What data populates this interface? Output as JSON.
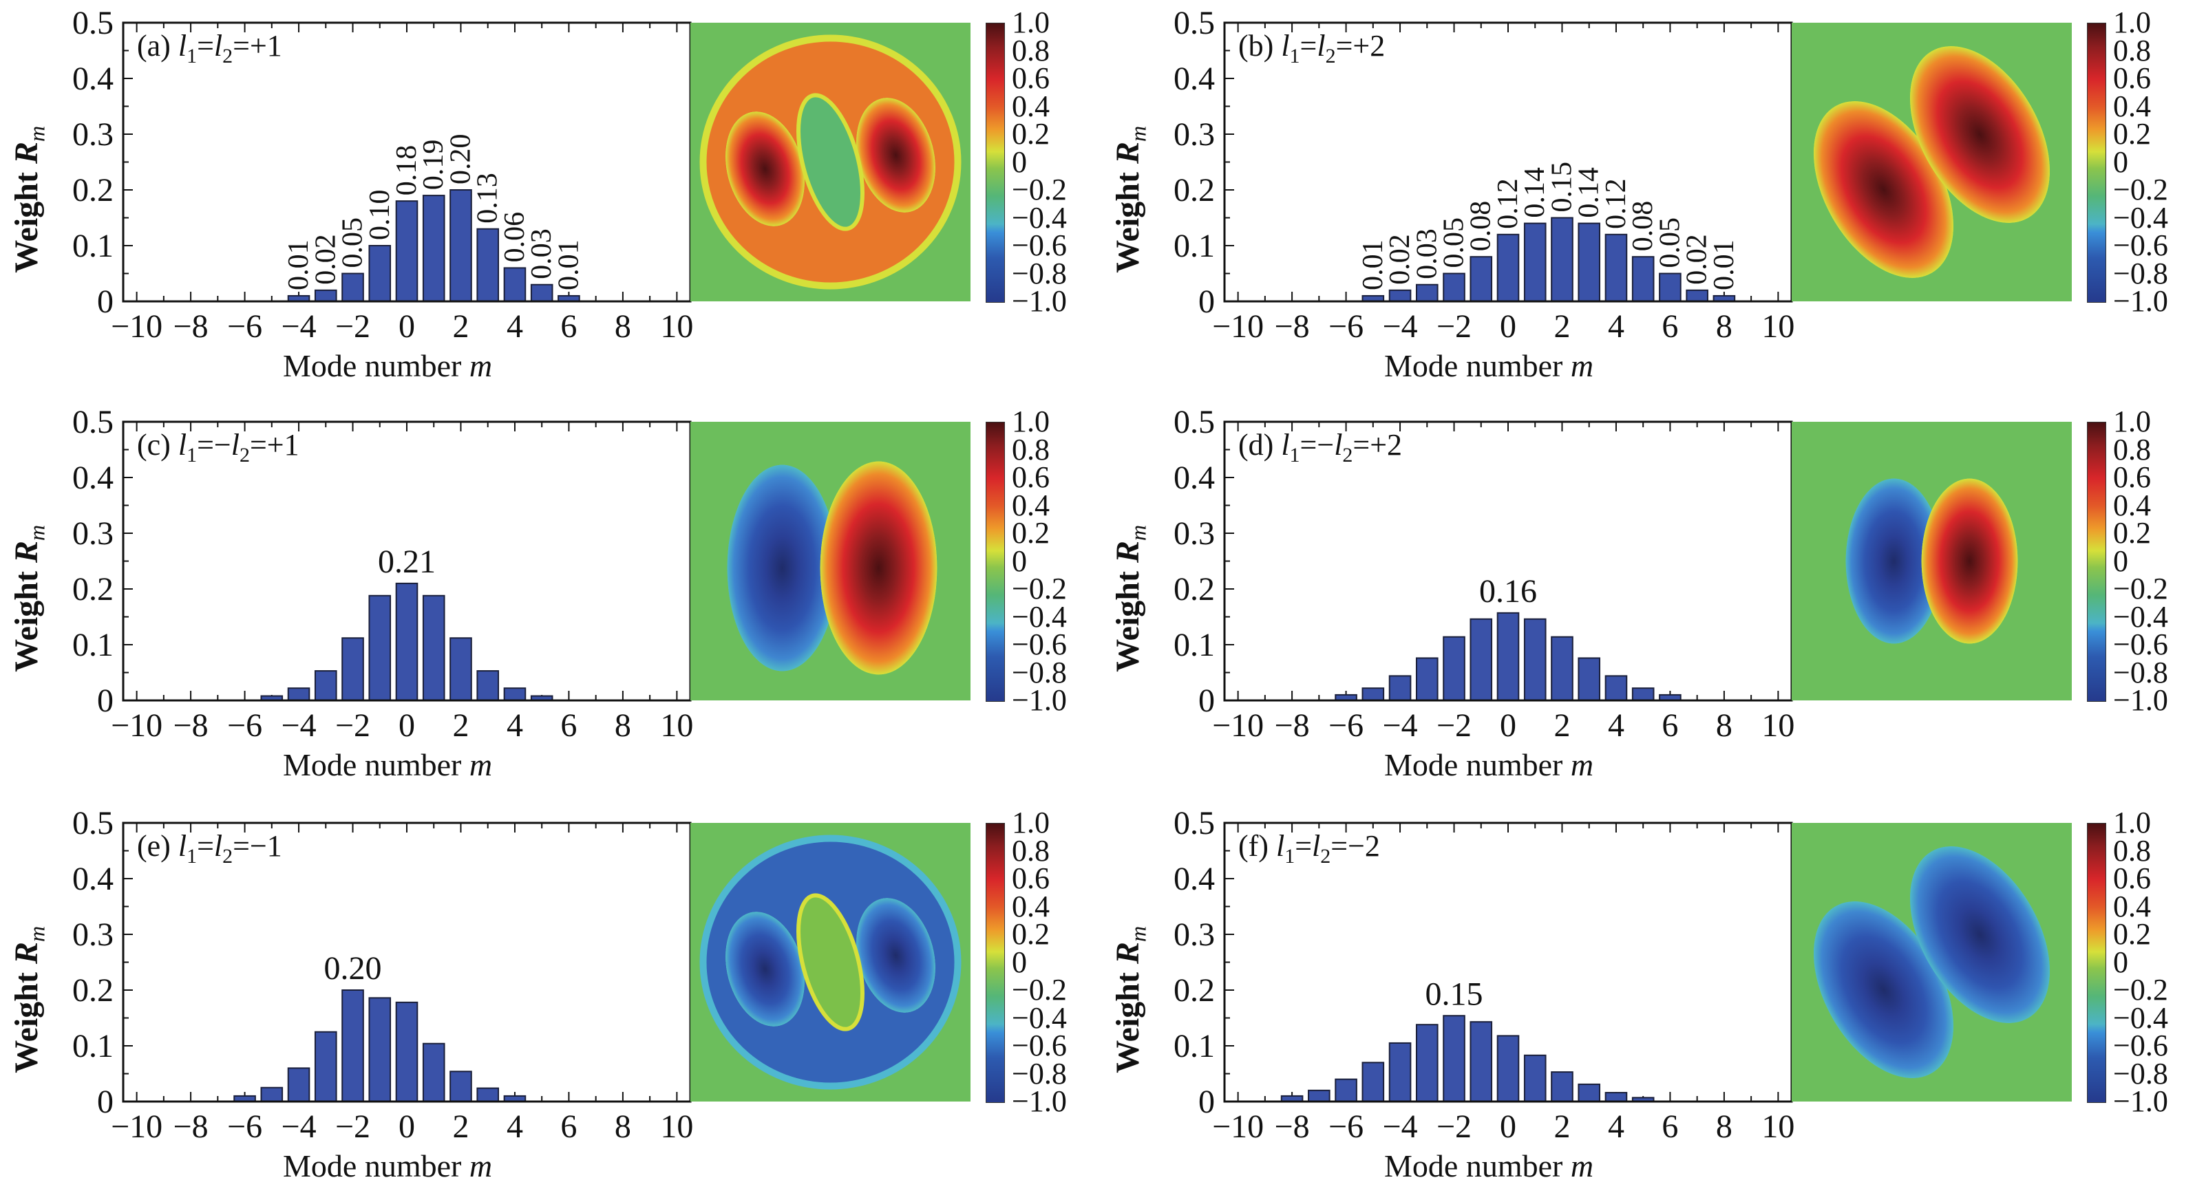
{
  "chart_data": [
    {
      "type": "bar",
      "panel": "a",
      "title": "(a) l1=l2=+1",
      "title_parts": {
        "prefix": "(a) ",
        "l1": "l",
        "sub1": "1",
        "mid": "=",
        "l2": "l",
        "sub2": "2",
        "suffix": "=+1"
      },
      "xlabel": "Mode number m",
      "xlabel_text": "Mode number ",
      "xlabel_var": "m",
      "ylabel": "Weight R_m",
      "ylabel_text": "Weight ",
      "ylabel_var": "R",
      "ylabel_sub": "m",
      "xlim": [
        -10.5,
        10.5
      ],
      "ylim": [
        0,
        0.5
      ],
      "xticks": [
        -10,
        -8,
        -6,
        -4,
        -2,
        0,
        2,
        4,
        6,
        8,
        10
      ],
      "xtick_labels": [
        "−10",
        "−8",
        "−6",
        "−4",
        "−2",
        "0",
        "2",
        "4",
        "6",
        "8",
        "10"
      ],
      "yticks": [
        0,
        0.1,
        0.2,
        0.3,
        0.4,
        0.5
      ],
      "ytick_labels": [
        "0",
        "0.1",
        "0.2",
        "0.3",
        "0.4",
        "0.5"
      ],
      "x": [
        -4,
        -3,
        -2,
        -1,
        0,
        1,
        2,
        3,
        4,
        5,
        6
      ],
      "values": [
        0.01,
        0.02,
        0.05,
        0.1,
        0.18,
        0.19,
        0.2,
        0.13,
        0.06,
        0.03,
        0.01
      ],
      "data_labels": [
        "0.01",
        "0.02",
        "0.05",
        "0.10",
        "0.18",
        "0.19",
        "0.20",
        "0.13",
        "0.06",
        "0.03",
        "0.01"
      ],
      "data_label_orientation": "vertical",
      "bar_color": "#3a52a8",
      "heatmap": {
        "description": "ring-shaped positive field with two dark-red lobes and a green elliptical center",
        "pattern": "ring",
        "sign": 1
      },
      "colorbar": {
        "min": -1.0,
        "max": 1.0,
        "tick_labels": [
          "1.0",
          "0.8",
          "0.6",
          "0.4",
          "0.2",
          "0",
          "−0.2",
          "−0.4",
          "−0.6",
          "−0.8",
          "−1.0"
        ],
        "colormap": "jet-like"
      }
    },
    {
      "type": "bar",
      "panel": "b",
      "title": "(b) l1=l2=+2",
      "title_parts": {
        "prefix": "(b) ",
        "l1": "l",
        "sub1": "1",
        "mid": "=",
        "l2": "l",
        "sub2": "2",
        "suffix": "=+2"
      },
      "xlabel": "Mode number m",
      "xlabel_text": "Mode number ",
      "xlabel_var": "m",
      "ylabel": "Weight R_m",
      "ylabel_text": "Weight ",
      "ylabel_var": "R",
      "ylabel_sub": "m",
      "xlim": [
        -10.5,
        10.5
      ],
      "ylim": [
        0,
        0.5
      ],
      "xticks": [
        -10,
        -8,
        -6,
        -4,
        -2,
        0,
        2,
        4,
        6,
        8,
        10
      ],
      "xtick_labels": [
        "−10",
        "−8",
        "−6",
        "−4",
        "−2",
        "0",
        "2",
        "4",
        "6",
        "8",
        "10"
      ],
      "yticks": [
        0,
        0.1,
        0.2,
        0.3,
        0.4,
        0.5
      ],
      "ytick_labels": [
        "0",
        "0.1",
        "0.2",
        "0.3",
        "0.4",
        "0.5"
      ],
      "x": [
        -5,
        -4,
        -3,
        -2,
        -1,
        0,
        1,
        2,
        3,
        4,
        5,
        6,
        7,
        8
      ],
      "values": [
        0.01,
        0.02,
        0.03,
        0.05,
        0.08,
        0.12,
        0.14,
        0.15,
        0.14,
        0.12,
        0.08,
        0.05,
        0.02,
        0.01
      ],
      "data_labels": [
        "0.01",
        "0.02",
        "0.03",
        "0.05",
        "0.08",
        "0.12",
        "0.14",
        "0.15",
        "0.14",
        "0.12",
        "0.08",
        "0.05",
        "0.02",
        "0.01"
      ],
      "data_label_orientation": "vertical",
      "bar_color": "#3a52a8",
      "heatmap": {
        "description": "two diagonal positive (red) lobes on green background",
        "pattern": "two-lobes-diagonal",
        "sign": 1
      },
      "colorbar": {
        "min": -1.0,
        "max": 1.0,
        "tick_labels": [
          "1.0",
          "0.8",
          "0.6",
          "0.4",
          "0.2",
          "0",
          "−0.2",
          "−0.4",
          "−0.6",
          "−0.8",
          "−1.0"
        ],
        "colormap": "jet-like"
      }
    },
    {
      "type": "bar",
      "panel": "c",
      "title": "(c) l1=−l2=+1",
      "title_parts": {
        "prefix": "(c) ",
        "l1": "l",
        "sub1": "1",
        "mid": "=−",
        "l2": "l",
        "sub2": "2",
        "suffix": "=+1"
      },
      "xlabel": "Mode number m",
      "xlabel_text": "Mode number ",
      "xlabel_var": "m",
      "ylabel": "Weight R_m",
      "ylabel_text": "Weight ",
      "ylabel_var": "R",
      "ylabel_sub": "m",
      "xlim": [
        -10.5,
        10.5
      ],
      "ylim": [
        0,
        0.5
      ],
      "xticks": [
        -10,
        -8,
        -6,
        -4,
        -2,
        0,
        2,
        4,
        6,
        8,
        10
      ],
      "xtick_labels": [
        "−10",
        "−8",
        "−6",
        "−4",
        "−2",
        "0",
        "2",
        "4",
        "6",
        "8",
        "10"
      ],
      "yticks": [
        0,
        0.1,
        0.2,
        0.3,
        0.4,
        0.5
      ],
      "ytick_labels": [
        "0",
        "0.1",
        "0.2",
        "0.3",
        "0.4",
        "0.5"
      ],
      "x": [
        -5,
        -4,
        -3,
        -2,
        -1,
        0,
        1,
        2,
        3,
        4,
        5
      ],
      "values": [
        0.008,
        0.022,
        0.053,
        0.112,
        0.188,
        0.21,
        0.188,
        0.112,
        0.053,
        0.022,
        0.008
      ],
      "peak_label": {
        "x": 0,
        "text": "0.21"
      },
      "bar_color": "#3a52a8",
      "heatmap": {
        "description": "blue negative lobe on left, red positive lobe on right, green background",
        "pattern": "dipole-vertical",
        "sign": 0
      },
      "colorbar": {
        "min": -1.0,
        "max": 1.0,
        "tick_labels": [
          "1.0",
          "0.8",
          "0.6",
          "0.4",
          "0.2",
          "0",
          "−0.2",
          "−0.4",
          "−0.6",
          "−0.8",
          "−1.0"
        ],
        "colormap": "jet-like"
      }
    },
    {
      "type": "bar",
      "panel": "d",
      "title": "(d) l1=−l2=+2",
      "title_parts": {
        "prefix": "(d) ",
        "l1": "l",
        "sub1": "1",
        "mid": "=−",
        "l2": "l",
        "sub2": "2",
        "suffix": "=+2"
      },
      "xlabel": "Mode number m",
      "xlabel_text": "Mode number ",
      "xlabel_var": "m",
      "ylabel": "Weight R_m",
      "ylabel_text": "Weight ",
      "ylabel_var": "R",
      "ylabel_sub": "m",
      "xlim": [
        -10.5,
        10.5
      ],
      "ylim": [
        0,
        0.5
      ],
      "xticks": [
        -10,
        -8,
        -6,
        -4,
        -2,
        0,
        2,
        4,
        6,
        8,
        10
      ],
      "xtick_labels": [
        "−10",
        "−8",
        "−6",
        "−4",
        "−2",
        "0",
        "2",
        "4",
        "6",
        "8",
        "10"
      ],
      "yticks": [
        0,
        0.1,
        0.2,
        0.3,
        0.4,
        0.5
      ],
      "ytick_labels": [
        "0",
        "0.1",
        "0.2",
        "0.3",
        "0.4",
        "0.5"
      ],
      "x": [
        -6,
        -5,
        -4,
        -3,
        -2,
        -1,
        0,
        1,
        2,
        3,
        4,
        5,
        6
      ],
      "values": [
        0.01,
        0.022,
        0.044,
        0.076,
        0.114,
        0.146,
        0.157,
        0.146,
        0.114,
        0.076,
        0.044,
        0.022,
        0.01
      ],
      "peak_label": {
        "x": 0,
        "text": "0.16"
      },
      "bar_color": "#3a52a8",
      "heatmap": {
        "description": "compact blue negative lobe left, red positive lobe right",
        "pattern": "dipole-compact",
        "sign": 0
      },
      "colorbar": {
        "min": -1.0,
        "max": 1.0,
        "tick_labels": [
          "1.0",
          "0.8",
          "0.6",
          "0.4",
          "0.2",
          "0",
          "−0.2",
          "−0.4",
          "−0.6",
          "−0.8",
          "−1.0"
        ],
        "colormap": "jet-like"
      }
    },
    {
      "type": "bar",
      "panel": "e",
      "title": "(e) l1=l2=−1",
      "title_parts": {
        "prefix": "(e) ",
        "l1": "l",
        "sub1": "1",
        "mid": "=",
        "l2": "l",
        "sub2": "2",
        "suffix": "=−1"
      },
      "xlabel": "Mode number m",
      "xlabel_text": "Mode number ",
      "xlabel_var": "m",
      "ylabel": "Weight R_m",
      "ylabel_text": "Weight ",
      "ylabel_var": "R",
      "ylabel_sub": "m",
      "xlim": [
        -10.5,
        10.5
      ],
      "ylim": [
        0,
        0.5
      ],
      "xticks": [
        -10,
        -8,
        -6,
        -4,
        -2,
        0,
        2,
        4,
        6,
        8,
        10
      ],
      "xtick_labels": [
        "−10",
        "−8",
        "−6",
        "−4",
        "−2",
        "0",
        "2",
        "4",
        "6",
        "8",
        "10"
      ],
      "yticks": [
        0,
        0.1,
        0.2,
        0.3,
        0.4,
        0.5
      ],
      "ytick_labels": [
        "0",
        "0.1",
        "0.2",
        "0.3",
        "0.4",
        "0.5"
      ],
      "x": [
        -6,
        -5,
        -4,
        -3,
        -2,
        -1,
        0,
        1,
        2,
        3,
        4
      ],
      "values": [
        0.01,
        0.025,
        0.06,
        0.125,
        0.2,
        0.186,
        0.178,
        0.104,
        0.054,
        0.024,
        0.01
      ],
      "peak_label": {
        "x": -2,
        "text": "0.20"
      },
      "bar_color": "#3a52a8",
      "heatmap": {
        "description": "ring-shaped negative (blue) field with two dark lobes and green elliptical center",
        "pattern": "ring",
        "sign": -1
      },
      "colorbar": {
        "min": -1.0,
        "max": 1.0,
        "tick_labels": [
          "1.0",
          "0.8",
          "0.6",
          "0.4",
          "0.2",
          "0",
          "−0.2",
          "−0.4",
          "−0.6",
          "−0.8",
          "−1.0"
        ],
        "colormap": "jet-like"
      }
    },
    {
      "type": "bar",
      "panel": "f",
      "title": "(f) l1=l2=−2",
      "title_parts": {
        "prefix": "(f) ",
        "l1": "l",
        "sub1": "1",
        "mid": "=",
        "l2": "l",
        "sub2": "2",
        "suffix": "=−2"
      },
      "xlabel": "Mode number m",
      "xlabel_text": "Mode number ",
      "xlabel_var": "m",
      "ylabel": "Weight R_m",
      "ylabel_text": "Weight ",
      "ylabel_var": "R",
      "ylabel_sub": "m",
      "xlim": [
        -10.5,
        10.5
      ],
      "ylim": [
        0,
        0.5
      ],
      "xticks": [
        -10,
        -8,
        -6,
        -4,
        -2,
        0,
        2,
        4,
        6,
        8,
        10
      ],
      "xtick_labels": [
        "−10",
        "−8",
        "−6",
        "−4",
        "−2",
        "0",
        "2",
        "4",
        "6",
        "8",
        "10"
      ],
      "yticks": [
        0,
        0.1,
        0.2,
        0.3,
        0.4,
        0.5
      ],
      "ytick_labels": [
        "0",
        "0.1",
        "0.2",
        "0.3",
        "0.4",
        "0.5"
      ],
      "x": [
        -8,
        -7,
        -6,
        -5,
        -4,
        -3,
        -2,
        -1,
        0,
        1,
        2,
        3,
        4,
        5
      ],
      "values": [
        0.01,
        0.02,
        0.04,
        0.07,
        0.105,
        0.138,
        0.154,
        0.143,
        0.118,
        0.083,
        0.053,
        0.031,
        0.016,
        0.007
      ],
      "peak_label": {
        "x": -2,
        "text": "0.15"
      },
      "bar_color": "#3a52a8",
      "heatmap": {
        "description": "two diagonal negative (blue) lobes on green background",
        "pattern": "two-lobes-diagonal",
        "sign": -1
      },
      "colorbar": {
        "min": -1.0,
        "max": 1.0,
        "tick_labels": [
          "1.0",
          "0.8",
          "0.6",
          "0.4",
          "0.2",
          "0",
          "−0.2",
          "−0.4",
          "−0.6",
          "−0.8",
          "−1.0"
        ],
        "colormap": "jet-like"
      }
    }
  ]
}
